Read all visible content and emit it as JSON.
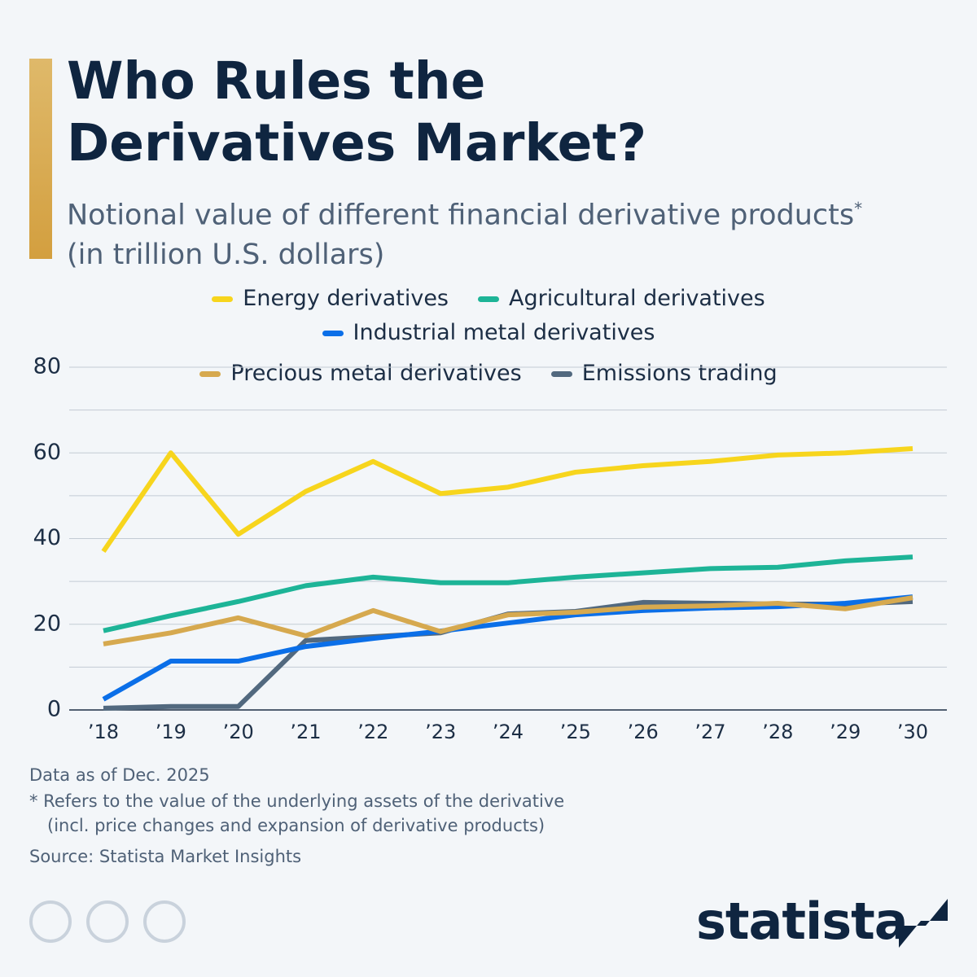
{
  "chart_data": {
    "type": "line",
    "title": "Who Rules the Derivatives Market?",
    "subtitle": "Notional value of different financial derivative products",
    "subtitle_marker": "*",
    "unit": "(in trillion U.S. dollars)",
    "categories": [
      "’18",
      "’19",
      "’20",
      "’21",
      "’22",
      "’23",
      "’24",
      "’25",
      "’26",
      "’27",
      "’28",
      "’29",
      "’30"
    ],
    "series": [
      {
        "name": "Energy derivatives",
        "color": "#f7d51d",
        "values": [
          37,
          60,
          41,
          51,
          58,
          50.5,
          52,
          55.5,
          57,
          58,
          59.5,
          60,
          61
        ]
      },
      {
        "name": "Agricultural derivatives",
        "color": "#1db497",
        "values": [
          18.5,
          22,
          25.3,
          29,
          31,
          29.7,
          29.7,
          31,
          32,
          33,
          33.3,
          34.8,
          35.7
        ]
      },
      {
        "name": "Industrial metal derivatives",
        "color": "#0b6fe8",
        "values": [
          2.5,
          11.4,
          11.4,
          14.8,
          16.7,
          18.4,
          20.3,
          22.2,
          23.2,
          23.8,
          24.1,
          24.9,
          26.4
        ]
      },
      {
        "name": "Precious metal derivatives",
        "color": "#d6a94f",
        "values": [
          15.4,
          18,
          21.5,
          17.3,
          23.2,
          18.3,
          22.2,
          22.8,
          24,
          24.3,
          24.9,
          23.6,
          26.2
        ]
      },
      {
        "name": "Emissions trading",
        "color": "#52697f",
        "values": [
          0.4,
          0.8,
          0.8,
          16.2,
          17.1,
          18,
          22.4,
          23,
          25.1,
          24.9,
          24.7,
          24.7,
          25.3
        ]
      }
    ],
    "ylim": [
      0,
      80
    ],
    "yticks": [
      0,
      20,
      40,
      60,
      80
    ],
    "grid": true,
    "notes": [
      "Data as of Dec. 2025",
      "* Refers to the value of the underlying assets of the derivative",
      "(incl. price changes and expansion of derivative products)"
    ],
    "source": "Source: Statista Market Insights",
    "brand": "statista"
  }
}
